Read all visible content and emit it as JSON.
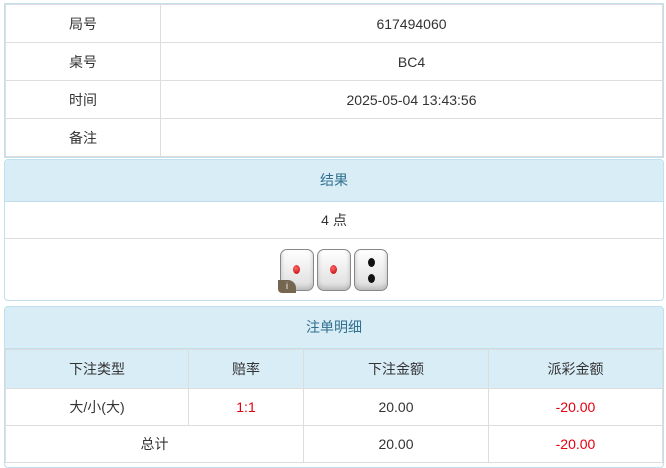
{
  "info": {
    "rows": [
      {
        "label": "局号",
        "value": "617494060"
      },
      {
        "label": "桌号",
        "value": "BC4"
      },
      {
        "label": "时间",
        "value": "2025-05-04 13:43:56"
      },
      {
        "label": "备注",
        "value": ""
      }
    ]
  },
  "result": {
    "title": "结果",
    "points": "4 点",
    "dice": [
      1,
      1,
      2
    ],
    "info_badge": "i"
  },
  "bets": {
    "title": "注单明细",
    "headers": [
      "下注类型",
      "赔率",
      "下注金额",
      "派彩金额"
    ],
    "rows": [
      {
        "type": "大/小(大)",
        "odds": "1:1",
        "amount": "20.00",
        "payout": "-20.00"
      }
    ],
    "total": {
      "label": "总计",
      "amount": "20.00",
      "payout": "-20.00"
    },
    "colors": {
      "negative": "#e4000f",
      "header_bg": "#d9edf7"
    }
  }
}
